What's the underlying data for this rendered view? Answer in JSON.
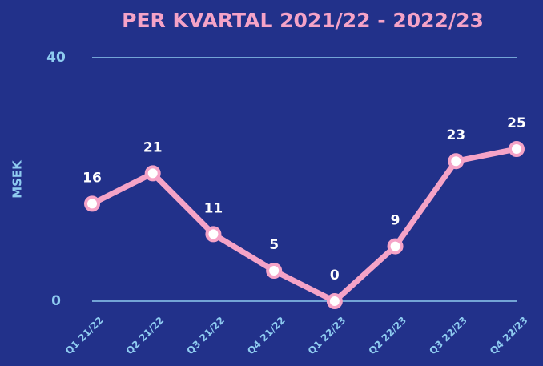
{
  "chart_data": {
    "type": "line",
    "title": "PER KVARTAL 2021/22 - 2022/23",
    "ylabel": "MSEK",
    "categories": [
      "Q1 21/22",
      "Q2 21/22",
      "Q3 21/22",
      "Q4 21/22",
      "Q1 22/23",
      "Q2 22/23",
      "Q3 22/23",
      "Q4 22/23"
    ],
    "values": [
      16,
      21,
      11,
      5,
      0,
      9,
      23,
      25
    ],
    "color": "#f5a3c7",
    "ylim": [
      0,
      40
    ],
    "yticks": [
      0,
      40
    ],
    "grid": true
  }
}
